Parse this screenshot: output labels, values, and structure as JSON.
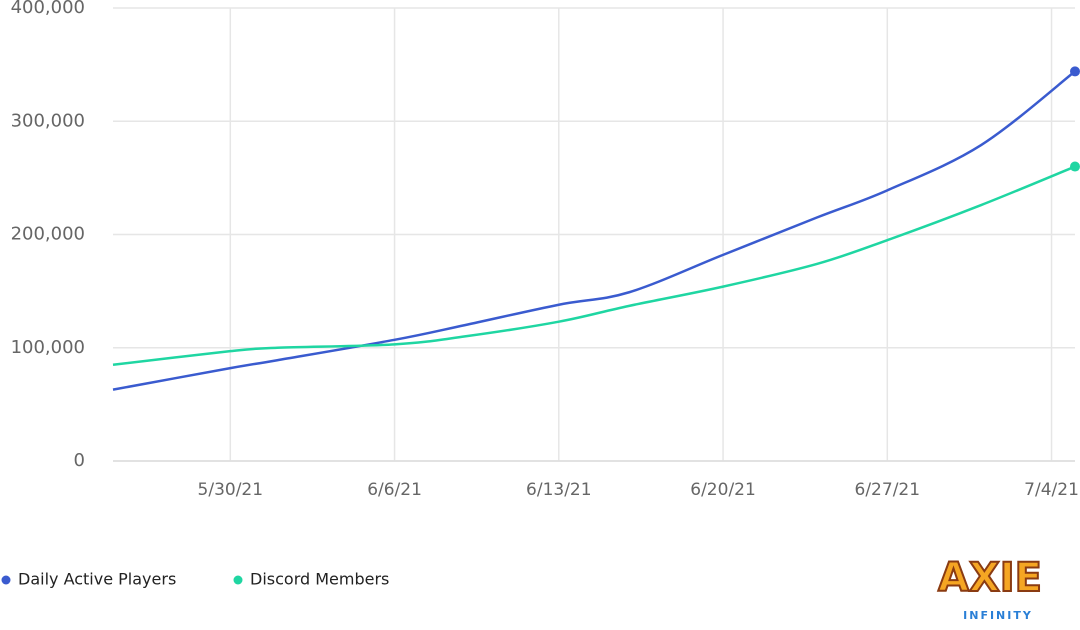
{
  "chart_data": {
    "type": "line",
    "x": [
      "5/25/21",
      "5/30/21",
      "6/1/21",
      "6/6/21",
      "6/9/21",
      "6/13/21",
      "6/16/21",
      "6/20/21",
      "6/24/21",
      "6/27/21",
      "7/1/21",
      "7/5/21"
    ],
    "series": [
      {
        "name": "Daily Active Players",
        "color": "#3a5bcf",
        "values": [
          63000,
          82000,
          89000,
          107000,
          120000,
          138000,
          149000,
          182000,
          215000,
          239000,
          279000,
          344000
        ]
      },
      {
        "name": "Discord Members",
        "color": "#1fd6a2",
        "values": [
          85000,
          97000,
          100000,
          103000,
          110000,
          123000,
          137000,
          154000,
          174000,
          195000,
          226000,
          260000
        ]
      }
    ],
    "xlim": [
      "5/25/21",
      "7/5/21"
    ],
    "xticks": [
      "5/30/21",
      "6/6/21",
      "6/13/21",
      "6/20/21",
      "6/27/21",
      "7/4/21"
    ],
    "ylim": [
      0,
      400000
    ],
    "yticks": [
      0,
      {
        "value": 100000,
        "label": "100,000"
      },
      {
        "value": 200000,
        "label": "200,000"
      },
      {
        "value": 300000,
        "label": "300,000"
      },
      {
        "value": 400000,
        "label": "400,000"
      }
    ],
    "grid": true,
    "legend": "bottom-left",
    "logo": {
      "name": "AXIE",
      "tagline": "INFINITY"
    }
  }
}
